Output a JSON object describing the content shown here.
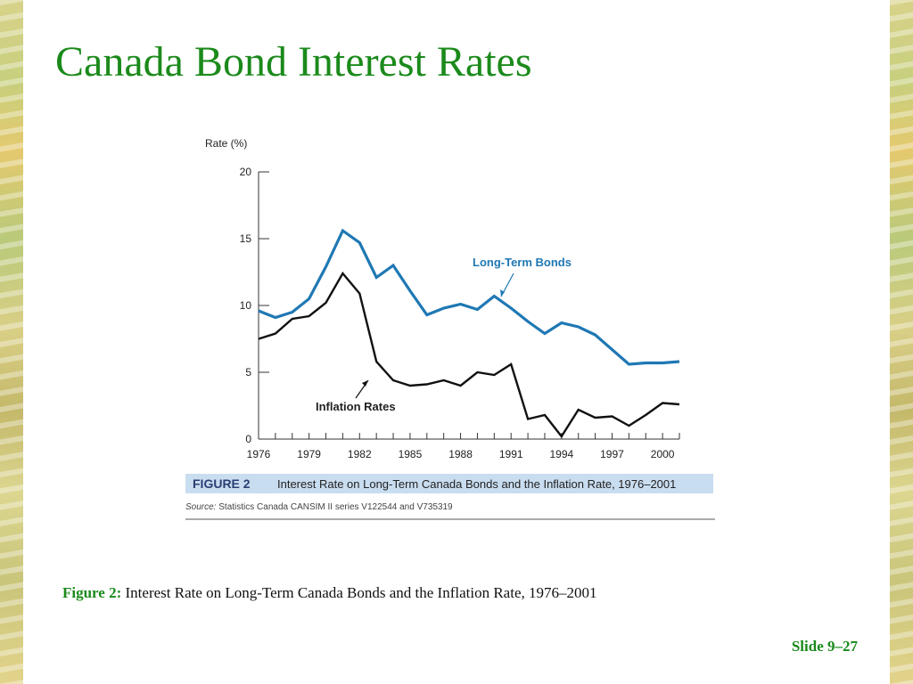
{
  "slide": {
    "title": "Canada Bond Interest Rates",
    "caption_label": "Figure 2:",
    "caption_text": "Interest Rate on Long-Term Canada Bonds and the Inflation Rate, 1976–2001",
    "slide_number": "Slide 9–27"
  },
  "figure": {
    "tag": "FIGURE 2",
    "title": "Interest Rate on Long-Term Canada Bonds and the Inflation Rate, 1976–2001",
    "source_label": "Source:",
    "source_text": "Statistics Canada CANSIM II series V122544 and V735319"
  },
  "colors": {
    "title_green": "#1b8a1b",
    "bonds_blue": "#1f78b4",
    "inflation_black": "#111111",
    "figure_band": "#c9ddf0"
  },
  "chart_data": {
    "type": "line",
    "ylabel": "Rate (%)",
    "xlabel": "",
    "ylim": [
      0,
      20
    ],
    "xlim": [
      1976,
      2001
    ],
    "yticks": [
      0,
      5,
      10,
      15,
      20
    ],
    "xtick_labels": [
      "1976",
      "1979",
      "1982",
      "1985",
      "1988",
      "1991",
      "1994",
      "1997",
      "2000"
    ],
    "x": [
      1976,
      1977,
      1978,
      1979,
      1980,
      1981,
      1982,
      1983,
      1984,
      1985,
      1986,
      1987,
      1988,
      1989,
      1990,
      1991,
      1992,
      1993,
      1994,
      1995,
      1996,
      1997,
      1998,
      1999,
      2000,
      2001
    ],
    "series": [
      {
        "name": "Long-Term Bonds",
        "values": [
          9.6,
          9.1,
          9.5,
          10.5,
          12.9,
          15.6,
          14.7,
          12.1,
          13.0,
          11.1,
          9.3,
          9.8,
          10.1,
          9.7,
          10.7,
          9.8,
          8.8,
          7.9,
          8.7,
          8.4,
          7.8,
          6.7,
          5.6,
          5.7,
          5.7,
          5.8
        ]
      },
      {
        "name": "Inflation Rates",
        "values": [
          7.5,
          7.9,
          9.0,
          9.2,
          10.2,
          12.4,
          10.9,
          5.8,
          4.4,
          4.0,
          4.1,
          4.4,
          4.0,
          5.0,
          4.8,
          5.6,
          1.5,
          1.8,
          0.2,
          2.2,
          1.6,
          1.7,
          1.0,
          1.8,
          2.7,
          2.6
        ]
      }
    ],
    "grid": false,
    "legend": "inline-labels"
  }
}
